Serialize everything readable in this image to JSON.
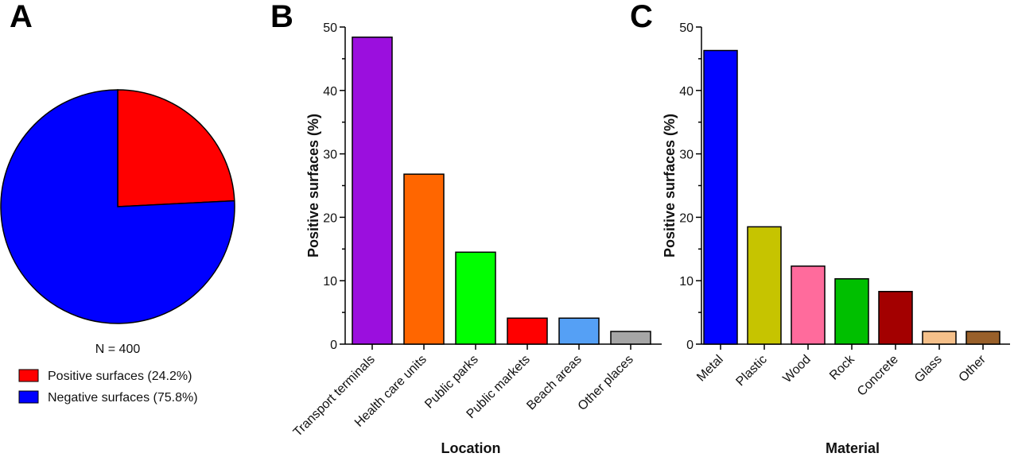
{
  "panels": {
    "a": "A",
    "b": "B",
    "c": "C"
  },
  "colors": {
    "positive": "#ff0000",
    "negative": "#0000ff"
  },
  "chart_data": [
    {
      "type": "pie",
      "title": "",
      "annotation": "N = 400",
      "labels": [
        "Positive surfaces (24.2%)",
        "Negative surfaces (75.8%)"
      ],
      "values": [
        24.2,
        75.8
      ],
      "colors": [
        "#ff0000",
        "#0000ff"
      ],
      "legend_position": "bottom-left"
    },
    {
      "type": "bar",
      "title": "",
      "xlabel": "Location",
      "ylabel": "Positive surfaces (%)",
      "ylim": [
        0,
        50
      ],
      "yticks": [
        "0",
        "10",
        "20",
        "30",
        "40",
        "50"
      ],
      "categories": [
        "Transport terminals",
        "Health care units",
        "Public parks",
        "Public markets",
        "Beach areas",
        "Other places"
      ],
      "values": [
        48.4,
        26.8,
        14.5,
        4.1,
        4.1,
        2.0
      ],
      "colors": [
        "#9b0fde",
        "#ff6600",
        "#00ff00",
        "#ff0000",
        "#55a0f5",
        "#a6a6a6"
      ]
    },
    {
      "type": "bar",
      "title": "",
      "xlabel": "Material",
      "ylabel": "Positive surfaces (%)",
      "ylim": [
        0,
        50
      ],
      "yticks": [
        "0",
        "10",
        "20",
        "30",
        "40",
        "50"
      ],
      "categories": [
        "Metal",
        "Plastic",
        "Wood",
        "Rock",
        "Concrete",
        "Glass",
        "Other"
      ],
      "values": [
        46.3,
        18.5,
        12.3,
        10.3,
        8.3,
        2.0,
        2.0
      ],
      "colors": [
        "#0000ff",
        "#c6c400",
        "#ff6b9c",
        "#00bf00",
        "#a30000",
        "#f5c08a",
        "#99602a"
      ]
    }
  ]
}
